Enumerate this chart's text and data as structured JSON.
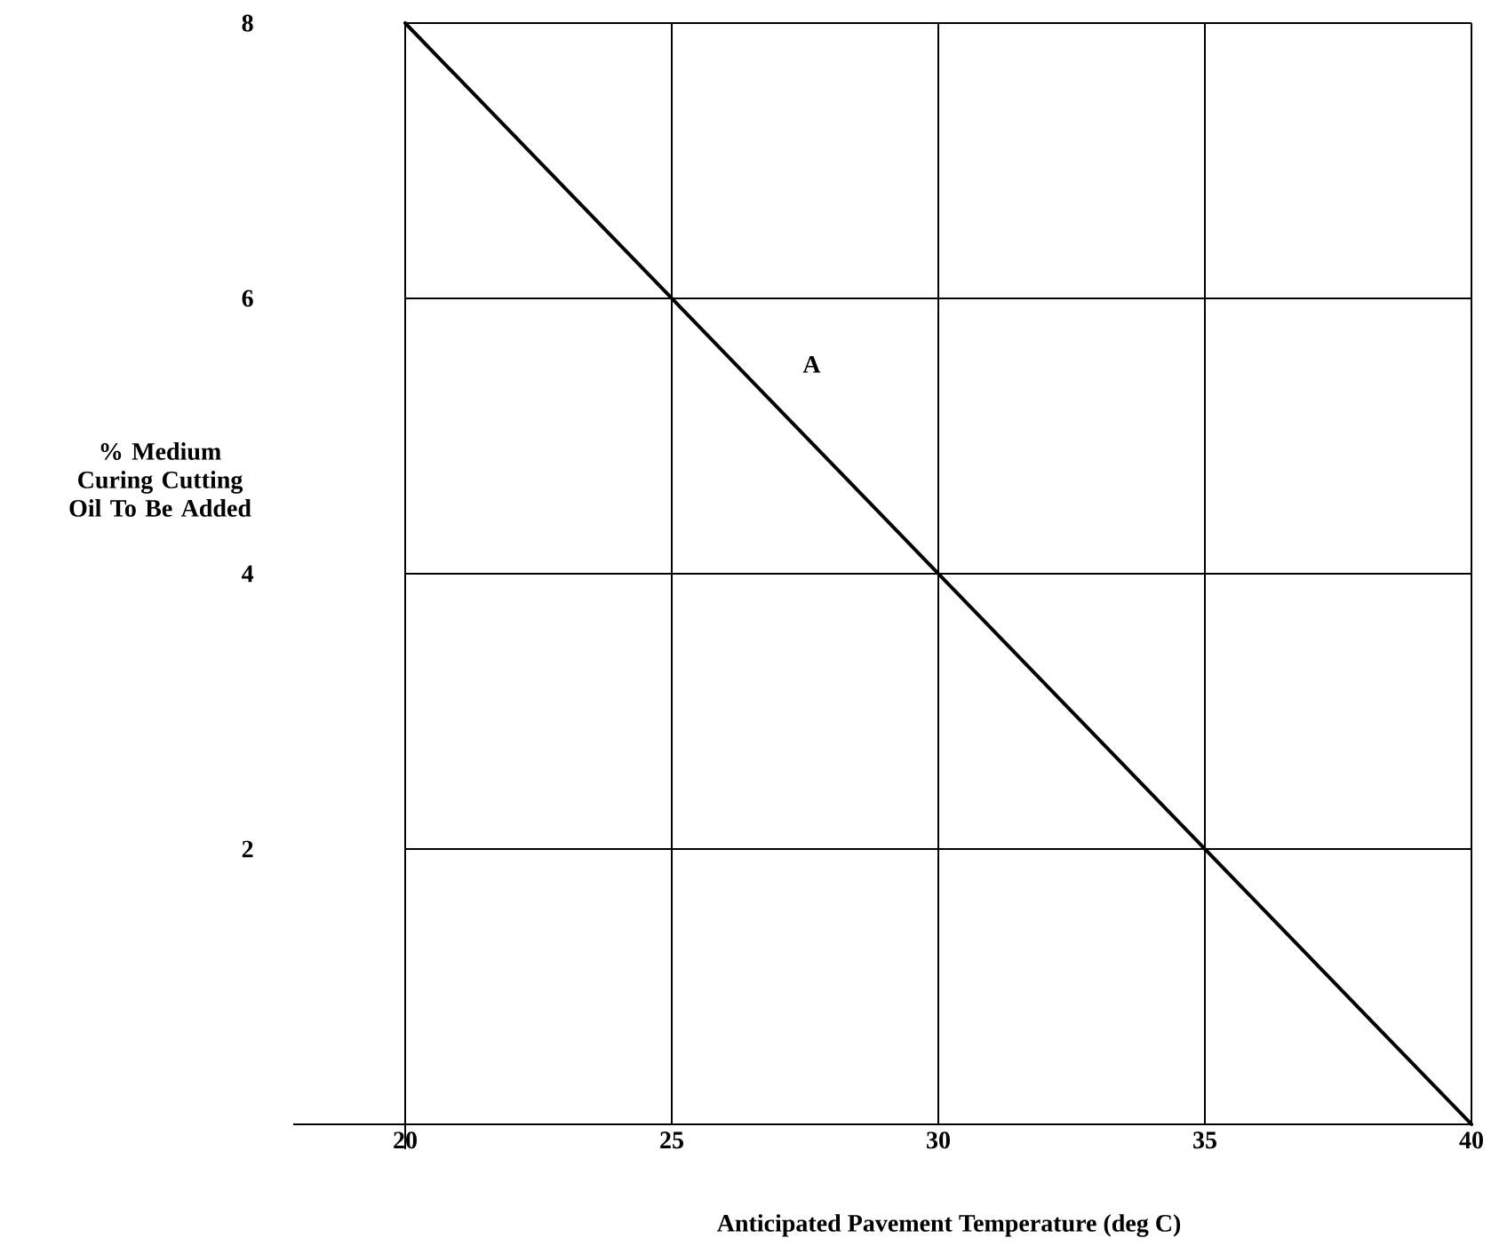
{
  "chart_data": {
    "type": "line",
    "xlabel": "Anticipated Pavement Temperature (deg C)",
    "ylabel": "% Medium Curing Cutting Oil To Be Added",
    "series": [
      {
        "x": [
          20,
          40
        ],
        "values": [
          8,
          0
        ],
        "color": "#000000"
      }
    ],
    "xlim": [
      17.9,
      40
    ],
    "ylim": [
      0,
      8
    ],
    "xticks": [
      20,
      25,
      30,
      35,
      40
    ],
    "yticks": [
      2,
      4,
      6,
      8
    ],
    "grid": true,
    "marker": "none",
    "line_style": "solid",
    "annotations": [
      "A"
    ]
  }
}
